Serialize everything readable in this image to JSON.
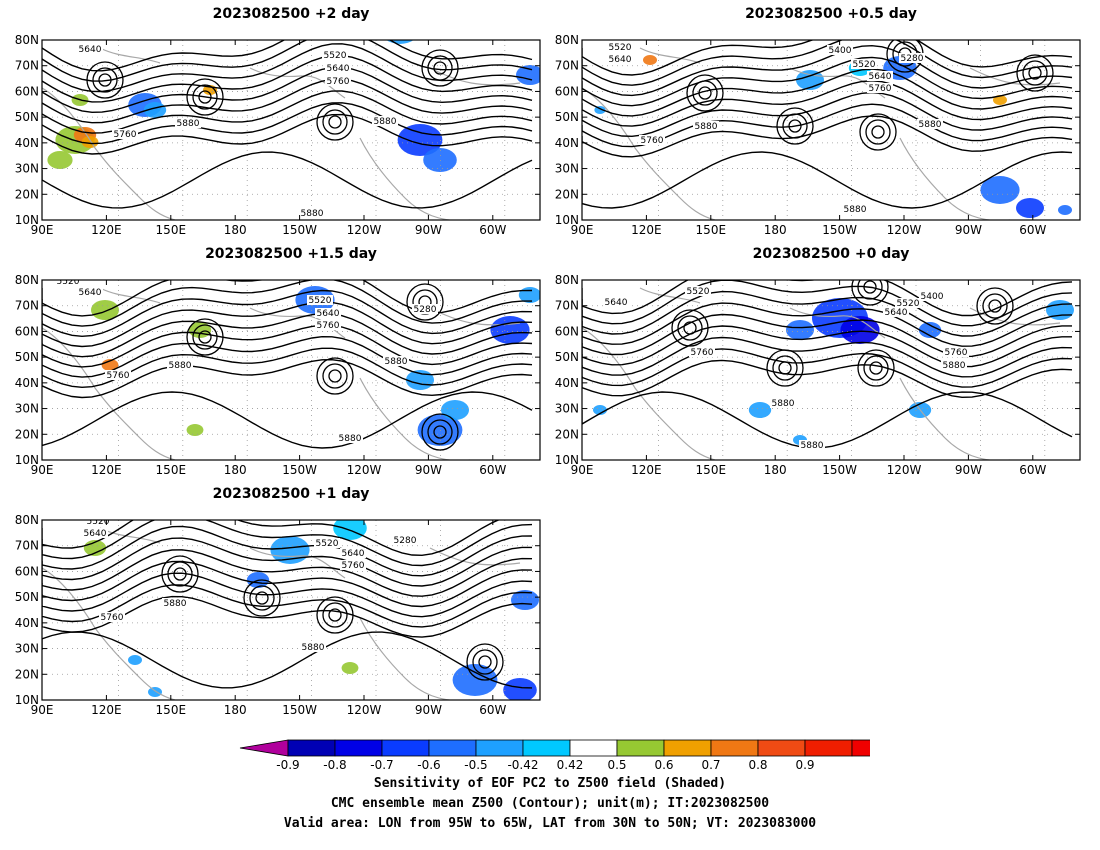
{
  "panels": [
    {
      "id": "p2",
      "title": "2023082500 +2 day",
      "contour_labels": [
        "5640",
        "5520",
        "5640",
        "5760",
        "5760",
        "5880",
        "5880",
        "5880"
      ]
    },
    {
      "id": "p05",
      "title": "2023082500 +0.5 day",
      "contour_labels": [
        "5520",
        "5640",
        "5400",
        "5280",
        "5520",
        "5640",
        "5760",
        "5880",
        "5760",
        "5880",
        "5880"
      ]
    },
    {
      "id": "p15",
      "title": "2023082500 +1.5 day",
      "contour_labels": [
        "5520",
        "5640",
        "5520",
        "5640",
        "5760",
        "5280",
        "5760",
        "5880",
        "5880",
        "5880"
      ]
    },
    {
      "id": "p0",
      "title": "2023082500 +0 day",
      "contour_labels": [
        "5640",
        "5520",
        "5520",
        "5400",
        "5640",
        "5760",
        "5880",
        "5760",
        "5880",
        "5880",
        "5880"
      ]
    },
    {
      "id": "p1",
      "title": "2023082500 +1 day",
      "contour_labels": [
        "5520",
        "5640",
        "5520",
        "5640",
        "5760",
        "5280",
        "5880",
        "5760",
        "5880"
      ]
    }
  ],
  "lat_labels": [
    "80N",
    "70N",
    "60N",
    "50N",
    "40N",
    "30N",
    "20N",
    "10N"
  ],
  "lon_labels": [
    "90E",
    "120E",
    "150E",
    "180",
    "150W",
    "120W",
    "90W",
    "60W"
  ],
  "colorbar": {
    "ticks": [
      "-0.9",
      "-0.8",
      "-0.7",
      "-0.6",
      "-0.5",
      "-0.42",
      "0.42",
      "0.5",
      "0.6",
      "0.7",
      "0.8",
      "0.9"
    ],
    "colors": [
      "#b0009c",
      "#0000b4",
      "#0000e6",
      "#0a3cff",
      "#1e6eff",
      "#1ea0ff",
      "#00c8ff",
      "#ffffff",
      "#96c832",
      "#f0a000",
      "#f07814",
      "#f04b14",
      "#f01e00",
      "#f00000",
      "#ff9ac8"
    ]
  },
  "caption": {
    "line1": "Sensitivity of EOF PC2 to Z500 field (Shaded)",
    "line2": "CMC ensemble mean Z500 (Contour); unit(m); IT:2023082500",
    "line3": "Valid area: LON from 95W to 65W, LAT from 30N to 50N; VT: 2023083000"
  }
}
